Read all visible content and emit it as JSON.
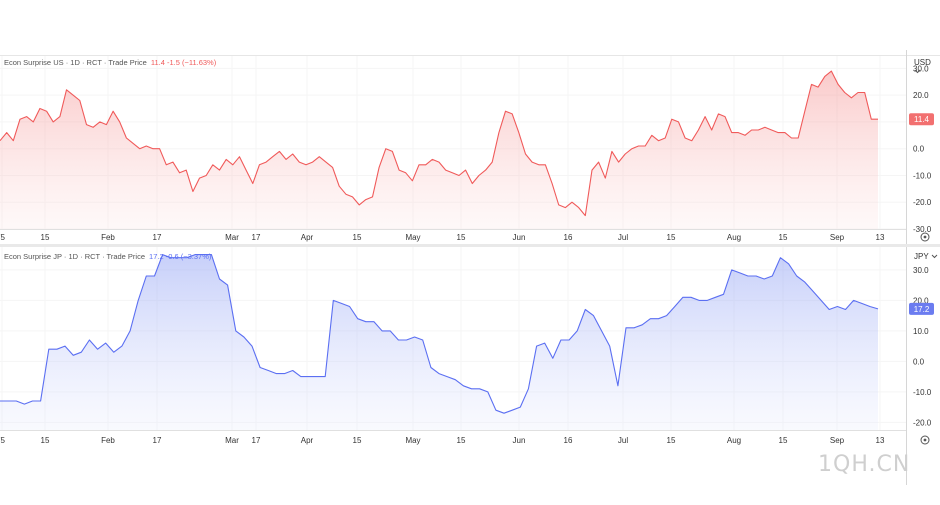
{
  "panes": [
    {
      "legend": {
        "label": "Econ Surprise US · 1D · RCT · Trade Price",
        "values": "11.4 -1.5 (−11.63%)"
      },
      "currency": "USD",
      "currency_chevron_icon": "chevron-down-icon",
      "last_value_label": "11.4"
    },
    {
      "legend": {
        "label": "Econ Surprise JP · 1D · RCT · Trade Price",
        "values": "17.2 -0.6 (−3.37%)"
      },
      "currency": "JPY",
      "currency_chevron_icon": "chevron-down-icon",
      "last_value_label": "17.2"
    }
  ],
  "time_axis": {
    "labels": [
      "'5",
      "15",
      "Feb",
      "17",
      "Mar",
      "17",
      "Apr",
      "15",
      "May",
      "15",
      "Jun",
      "16",
      "Jul",
      "15",
      "Aug",
      "15",
      "Sep",
      "13"
    ],
    "settings_icon": "settings-icon"
  },
  "watermark": "1QH.CN",
  "colors": {
    "us_line": "#f05a5a",
    "jp_line": "#5b6ff2",
    "us_badge": "#f27070",
    "jp_badge": "#6b7cf0"
  },
  "chart_data": [
    {
      "type": "area",
      "series": [
        {
          "name": "Econ Surprise US",
          "y": [
            3,
            6,
            3,
            11,
            12,
            10,
            15,
            14,
            10,
            12,
            22,
            20,
            18,
            9,
            8,
            10,
            9,
            14,
            10,
            4,
            2,
            0,
            1,
            0,
            0,
            -6,
            -5,
            -9,
            -8,
            -16,
            -11,
            -10,
            -6,
            -8,
            -4,
            -6,
            -3,
            -8,
            -13,
            -6,
            -5,
            -3,
            -1,
            -4,
            -2,
            -5,
            -6,
            -5,
            -3,
            -5,
            -7,
            -14,
            -17,
            -18,
            -21,
            -19,
            -18,
            -7,
            0,
            -1,
            -8,
            -9,
            -12,
            -6,
            -6,
            -4,
            -5,
            -8,
            -9,
            -10,
            -8,
            -13,
            -10,
            -8,
            -5,
            6,
            14,
            13,
            6,
            -2,
            -5,
            -6,
            -6,
            -13,
            -21,
            -22,
            -20,
            -22,
            -25,
            -8,
            -5,
            -11,
            -1,
            -5,
            -2,
            0,
            1,
            1,
            5,
            3,
            4,
            11,
            10,
            4,
            3,
            7,
            12,
            7,
            13,
            12,
            6,
            6,
            5,
            7,
            7,
            8,
            7,
            6,
            6,
            4,
            4,
            14,
            24,
            23,
            27,
            29,
            24,
            21,
            19,
            21,
            21,
            11,
            11
          ]
        }
      ],
      "ylim": [
        -30,
        35
      ],
      "yticks": [
        30,
        20,
        10,
        0,
        -10,
        -20,
        -30
      ],
      "ytick_labels": [
        "30.0",
        "20.0",
        "10.0",
        "0.0",
        "-10.0",
        "-20.0",
        "-30.0"
      ]
    },
    {
      "type": "area",
      "series": [
        {
          "name": "Econ Surprise JP",
          "y": [
            -13,
            -13,
            -13,
            -14,
            -13,
            -13,
            4,
            4,
            5,
            2,
            3,
            7,
            4,
            6,
            3,
            5,
            10,
            20,
            28,
            28,
            35,
            34,
            34,
            34,
            35,
            35,
            35,
            27,
            25,
            10,
            8,
            5,
            -2,
            -3,
            -4,
            -4,
            -3,
            -5,
            -5,
            -5,
            -5,
            20,
            19,
            18,
            14,
            13,
            13,
            10,
            10,
            7,
            7,
            8,
            7,
            -2,
            -4,
            -5,
            -6,
            -8,
            -9,
            -9,
            -10,
            -16,
            -17,
            -16,
            -15,
            -9,
            5,
            6,
            1,
            7,
            7,
            10,
            17,
            15,
            10,
            5,
            -8,
            11,
            11,
            12,
            14,
            14,
            15,
            18,
            21,
            21,
            20,
            20,
            21,
            22,
            30,
            29,
            28,
            28,
            27,
            28,
            34,
            32,
            28,
            26,
            23,
            20,
            17,
            18,
            17,
            20,
            19,
            18,
            17.2
          ]
        }
      ],
      "ylim": [
        -22.5,
        37.5
      ],
      "yticks": [
        30,
        20,
        10,
        0,
        -10,
        -20
      ],
      "ytick_labels": [
        "30.0",
        "20.0",
        "10.0",
        "0.0",
        "-10.0",
        "-20.0"
      ]
    }
  ]
}
